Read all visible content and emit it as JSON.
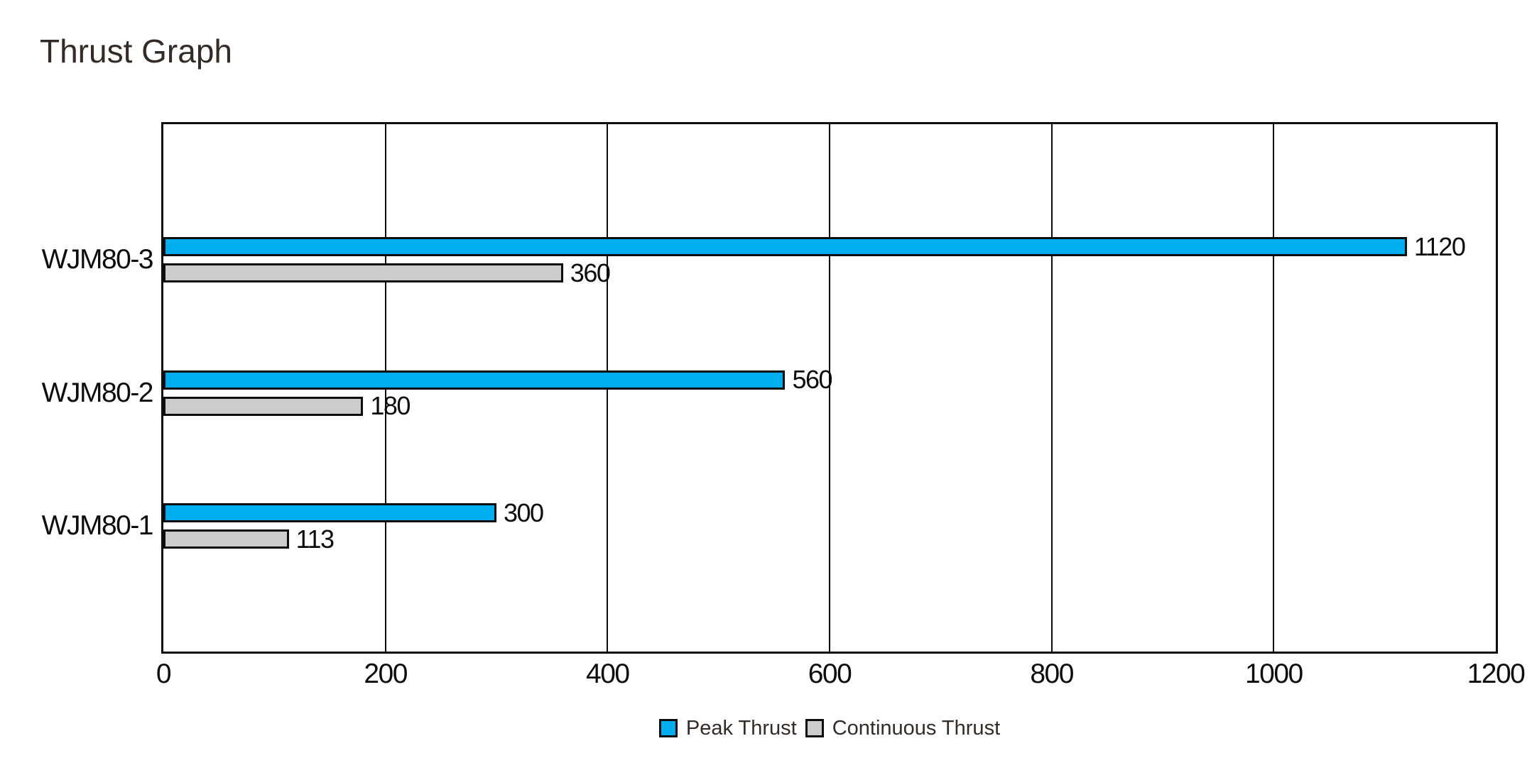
{
  "chart_data": {
    "type": "bar",
    "orientation": "horizontal",
    "title": "Thrust Graph",
    "categories": [
      "WJM80-1",
      "WJM80-2",
      "WJM80-3"
    ],
    "series": [
      {
        "name": "Peak Thrust",
        "color": "#00ADEE",
        "values": [
          300,
          560,
          1120
        ]
      },
      {
        "name": "Continuous Thrust",
        "color": "#CCCCCC",
        "values": [
          113,
          180,
          360
        ]
      }
    ],
    "x_ticks": [
      0,
      200,
      400,
      600,
      800,
      1000,
      1200
    ],
    "xlim": [
      0,
      1200
    ],
    "grid": true,
    "data_labels": true,
    "legend_position": "bottom",
    "colors": {
      "axis_line": "#0D0D0D",
      "label_text": "#0D0D0D",
      "title_text": "#332B28",
      "background": "#FFFFFF"
    }
  }
}
